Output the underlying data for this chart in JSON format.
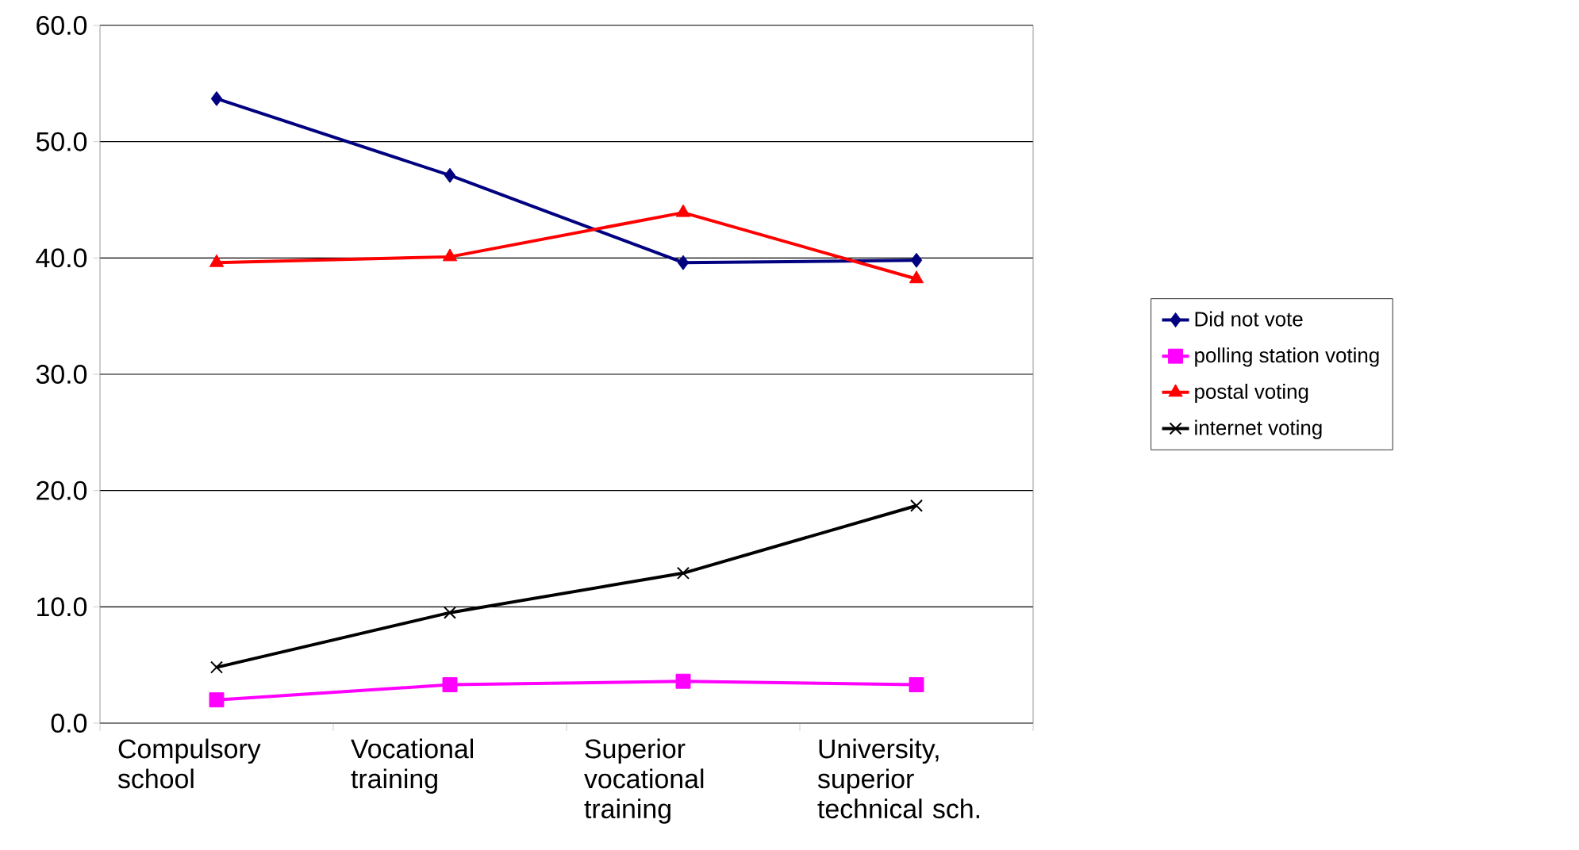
{
  "chart_data": {
    "type": "line",
    "categories": [
      "Compulsory school",
      "Vocational training",
      "Superior vocational training",
      "University, superior technical sch."
    ],
    "series": [
      {
        "name": "Did not vote",
        "color": "#000080",
        "marker": "diamond",
        "values": [
          53.7,
          47.1,
          39.6,
          39.8
        ]
      },
      {
        "name": "polling station voting",
        "color": "#ff00ff",
        "marker": "square",
        "values": [
          2.0,
          3.3,
          3.6,
          3.3
        ]
      },
      {
        "name": "postal voting",
        "color": "#ff0000",
        "marker": "triangle",
        "values": [
          39.6,
          40.1,
          43.9,
          38.2
        ]
      },
      {
        "name": "internet voting",
        "color": "#000000",
        "marker": "cross",
        "values": [
          4.8,
          9.5,
          12.9,
          18.7
        ]
      }
    ],
    "ylim": [
      0,
      60
    ],
    "yticks": [
      {
        "value": 0,
        "label": "0.0"
      },
      {
        "value": 10,
        "label": "10.0"
      },
      {
        "value": 20,
        "label": "20.0"
      },
      {
        "value": 30,
        "label": "30.0"
      },
      {
        "value": 40,
        "label": "40.0"
      },
      {
        "value": 50,
        "label": "50.0"
      },
      {
        "value": 60,
        "label": "60.0"
      }
    ],
    "grid": "y",
    "legend": "right"
  }
}
